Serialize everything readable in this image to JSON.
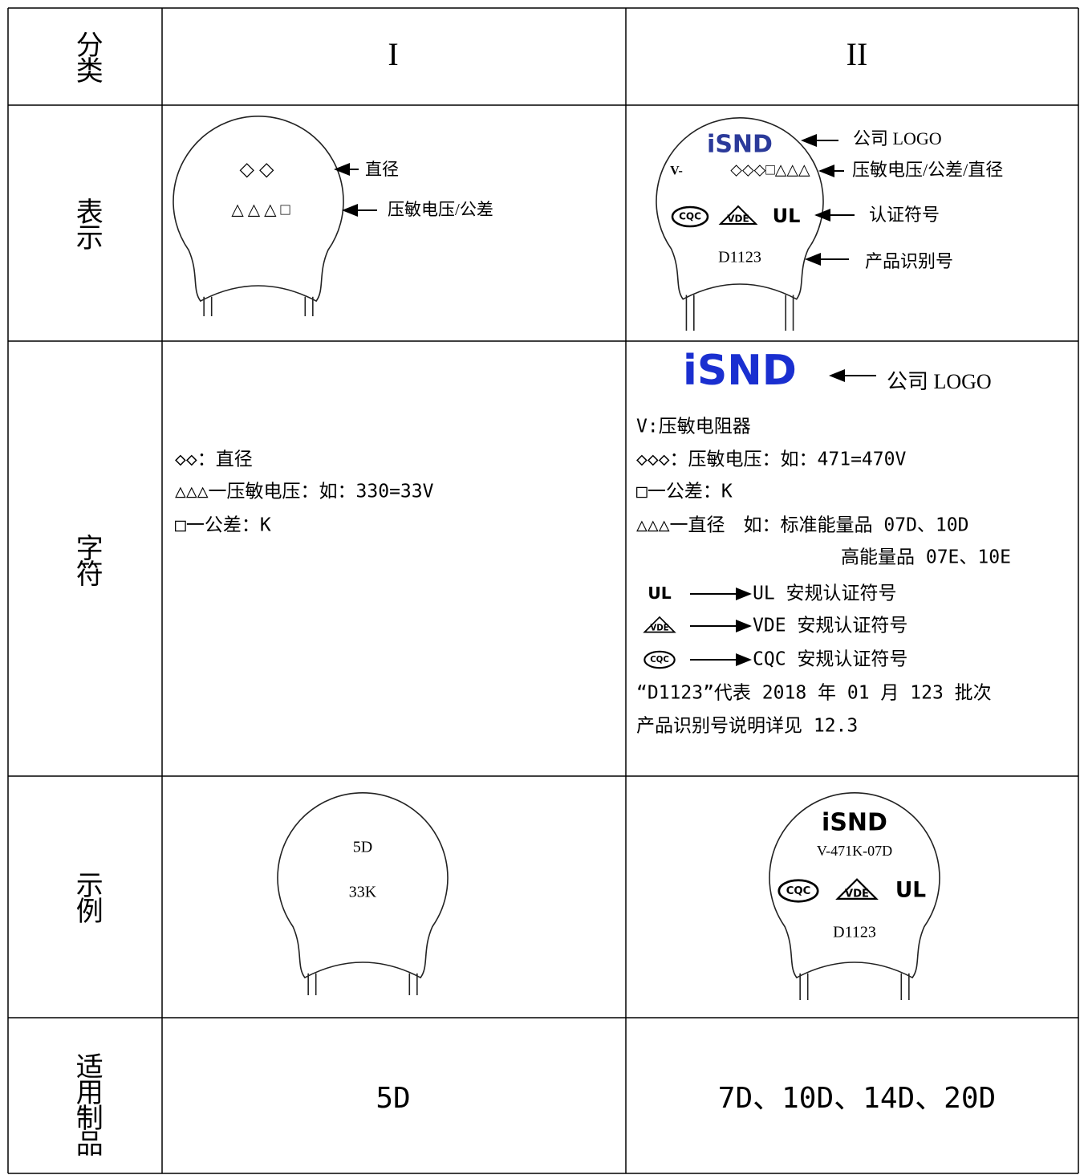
{
  "header": {
    "category": "分类",
    "type_1": "I",
    "type_2": "II"
  },
  "representation": {
    "label": "表示",
    "type_1": {
      "marks_1": "◇ ◇",
      "marks_2": "△ △ △ □",
      "callouts": [
        "直径",
        "压敏电压/公差"
      ]
    },
    "type_2": {
      "logo": "iSND",
      "prefix": "V-",
      "marks": "◇◇◇□△△△",
      "certs": [
        "CQC",
        "VDE",
        "UL"
      ],
      "code": "D1123",
      "callouts": [
        "公司 LOGO",
        "压敏电压/公差/直径",
        "认证符号",
        "产品识别号"
      ]
    }
  },
  "characters": {
    "label": "字符",
    "type_1": [
      "◇◇：直径",
      "△△△一压敏电压：如：330=33V",
      "□一公差：K"
    ],
    "type_2": {
      "logo": "iSND",
      "logo_callout": "公司 LOGO",
      "lines": [
        "V:压敏电阻器",
        "◇◇◇：压敏电压：如：471=470V",
        "□一公差：K",
        "△△△一直径　如：标准能量品 07D、10D",
        "高能量品 07E、10E"
      ],
      "certs": [
        {
          "icon": "UL",
          "text": "UL 安规认证符号"
        },
        {
          "icon": "VDE",
          "text": "VDE 安规认证符号"
        },
        {
          "icon": "CQC",
          "text": "CQC 安规认证符号"
        }
      ],
      "notes": [
        "“D1123”代表 2018 年 01 月 123 批次",
        "产品识别号说明详见 12.3"
      ]
    }
  },
  "example": {
    "label": "示例",
    "type_1": [
      "5D",
      "33K"
    ],
    "type_2": {
      "logo": "iSND",
      "model": "V-471K-07D",
      "certs": [
        "CQC",
        "VDE",
        "UL"
      ],
      "code": "D1123"
    }
  },
  "products": {
    "label": "适用制品",
    "type_1": "5D",
    "type_2": "7D、10D、14D、20D"
  }
}
